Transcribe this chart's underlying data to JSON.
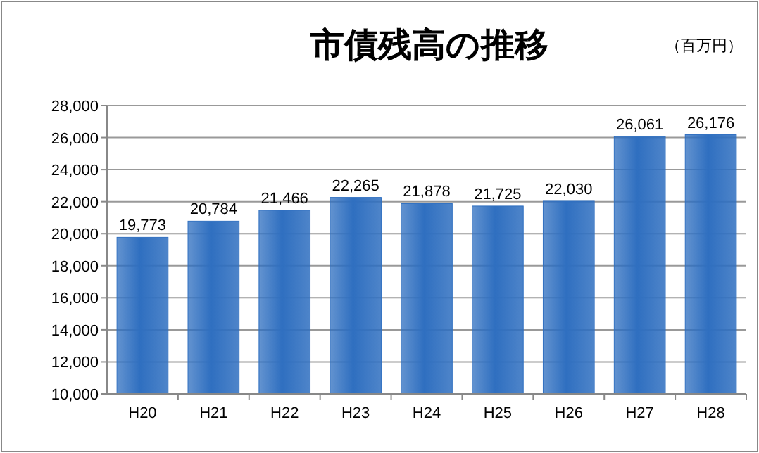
{
  "chart_data": {
    "type": "bar",
    "title": "市債残高の推移",
    "annotations": [
      "（百万円）"
    ],
    "categories": [
      "H20",
      "H21",
      "H22",
      "H23",
      "H24",
      "H25",
      "H26",
      "H27",
      "H28"
    ],
    "values": [
      19773,
      20784,
      21466,
      22265,
      21878,
      21725,
      22030,
      26061,
      26176
    ],
    "value_labels": [
      "19,773",
      "20,784",
      "21,466",
      "22,265",
      "21,878",
      "21,725",
      "22,030",
      "26,061",
      "26,176"
    ],
    "color": "#2f6fc0",
    "ylim": [
      10000,
      28000
    ],
    "yticks": [
      {
        "value": 10000,
        "label": "10,000"
      },
      {
        "value": 12000,
        "label": "12,000"
      },
      {
        "value": 14000,
        "label": "14,000"
      },
      {
        "value": 16000,
        "label": "16,000"
      },
      {
        "value": 18000,
        "label": "18,000"
      },
      {
        "value": 20000,
        "label": "20,000"
      },
      {
        "value": 22000,
        "label": "22,000"
      },
      {
        "value": 24000,
        "label": "24,000"
      },
      {
        "value": 26000,
        "label": "26,000"
      },
      {
        "value": 28000,
        "label": "28,000"
      }
    ],
    "grid": "y"
  }
}
